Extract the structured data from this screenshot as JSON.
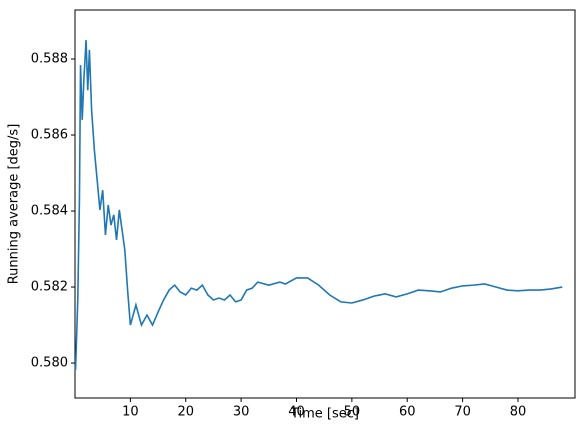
{
  "chart_data": {
    "type": "line",
    "xlabel": "Time [sec]",
    "ylabel": "Running average [deg/s]",
    "x": [
      0.1,
      0.5,
      0.8,
      1.0,
      1.3,
      1.6,
      2,
      2.3,
      2.6,
      3,
      3.5,
      4,
      4.5,
      5,
      5.5,
      6,
      6.5,
      7,
      7.5,
      8,
      8.5,
      9,
      9.5,
      10,
      10.5,
      11,
      12,
      13,
      14,
      15,
      16,
      17,
      18,
      19,
      20,
      21,
      22,
      23,
      24,
      25,
      26,
      27,
      28,
      29,
      30,
      31,
      32,
      33,
      35,
      37,
      38,
      40,
      42,
      44,
      46,
      48,
      50,
      52,
      54,
      56,
      58,
      60,
      62,
      64,
      66,
      68,
      70,
      72,
      74,
      76,
      78,
      80,
      82,
      84,
      86,
      88
    ],
    "series": [
      {
        "color": "#1f77b4",
        "values": [
          0.57982,
          0.58166,
          0.58429,
          0.58784,
          0.5864,
          0.58745,
          0.5885,
          0.58718,
          0.58824,
          0.58666,
          0.5856,
          0.58482,
          0.58403,
          0.58455,
          0.58337,
          0.58416,
          0.58363,
          0.5839,
          0.58324,
          0.58403,
          0.5835,
          0.58297,
          0.58192,
          0.581,
          0.58126,
          0.58153,
          0.581,
          0.58126,
          0.581,
          0.58134,
          0.58166,
          0.58192,
          0.58205,
          0.58187,
          0.58179,
          0.58197,
          0.58192,
          0.58205,
          0.58179,
          0.58166,
          0.58171,
          0.58166,
          0.58179,
          0.58161,
          0.58166,
          0.58192,
          0.58197,
          0.58213,
          0.58205,
          0.58213,
          0.58208,
          0.58224,
          0.58224,
          0.58205,
          0.58179,
          0.58161,
          0.58158,
          0.58166,
          0.58176,
          0.58182,
          0.58174,
          0.58182,
          0.58192,
          0.5819,
          0.58187,
          0.58197,
          0.58203,
          0.58205,
          0.58208,
          0.582,
          0.58192,
          0.5819,
          0.58192,
          0.58192,
          0.58195,
          0.582
        ]
      }
    ],
    "xlim": [
      0,
      90.3
    ],
    "xticks": [
      10,
      20,
      30,
      40,
      50,
      60,
      70,
      80
    ],
    "ylim": [
      0.57908,
      0.58929
    ],
    "yticks": [
      {
        "value": 0.58,
        "label": "0.580"
      },
      0.582,
      0.584,
      0.586,
      0.588
    ]
  }
}
